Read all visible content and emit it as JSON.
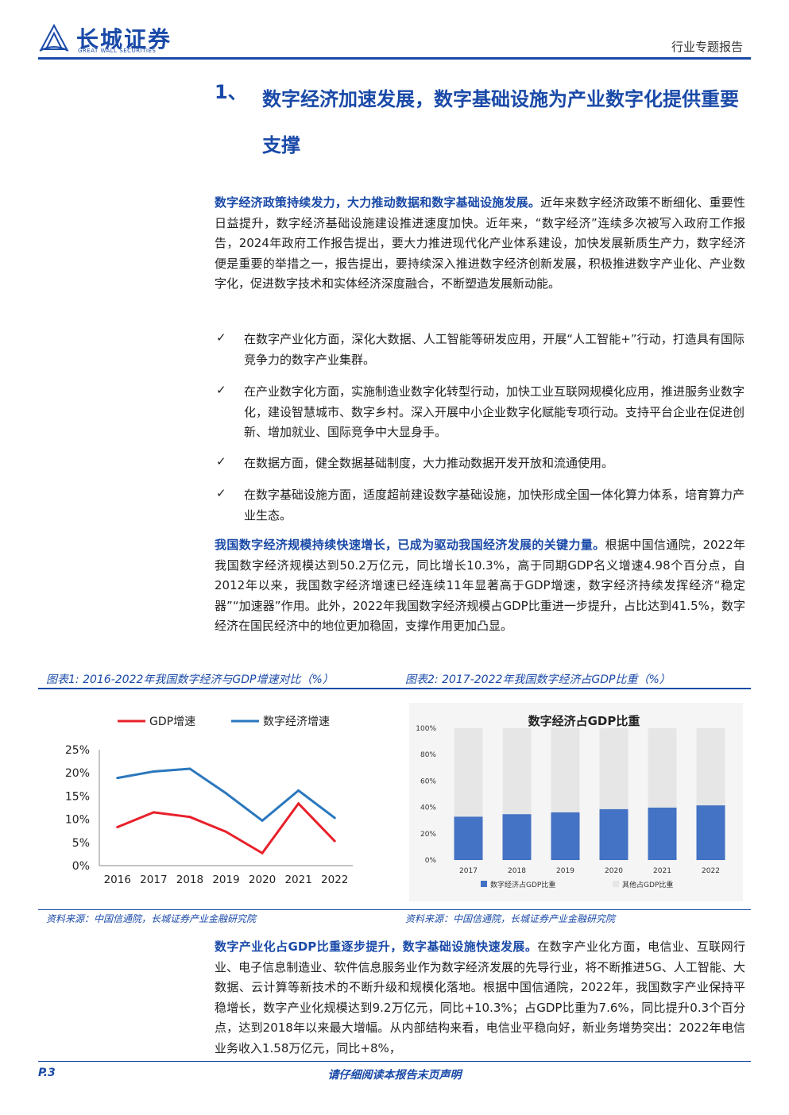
{
  "header": {
    "logo_cn": "长城证券",
    "logo_en": "GREAT WALL SECURITIES",
    "report_type": "行业专题报告"
  },
  "section": {
    "number": "1、",
    "title": "数字经济加速发展，数字基础设施为产业数字化提供重要支撑"
  },
  "para1": {
    "lead": "数字经济政策持续发力，大力推动数据和数字基础设施发展。",
    "text": "近年来数字经济政策不断细化、重要性日益提升，数字经济基础设施建设推进速度加快。近年来，“数字经济”连续多次被写入政府工作报告，2024年政府工作报告提出，要大力推进现代化产业体系建设，加快发展新质生产力，数字经济便是重要的举措之一，报告提出，要持续深入推进数字经济创新发展，积极推进数字产业化、产业数字化，促进数字技术和实体经济深度融合，不断塑造发展新动能。"
  },
  "bullets": [
    {
      "mark": "✓",
      "text": "在数字产业化方面，深化大数据、人工智能等研发应用，开展“人工智能+”行动，打造具有国际竞争力的数字产业集群。"
    },
    {
      "mark": "✓",
      "text": "在产业数字化方面，实施制造业数字化转型行动，加快工业互联网规模化应用，推进服务业数字化，建设智慧城市、数字乡村。深入开展中小企业数字化赋能专项行动。支持平台企业在促进创新、增加就业、国际竞争中大显身手。"
    },
    {
      "mark": "✓",
      "text": "在数据方面，健全数据基础制度，大力推动数据开发开放和流通使用。"
    },
    {
      "mark": "✓",
      "text": "在数字基础设施方面，适度超前建设数字基础设施，加快形成全国一体化算力体系，培育算力产业生态。"
    }
  ],
  "para2": {
    "lead": "我国数字经济规模持续快速增长，已成为驱动我国经济发展的关键力量。",
    "text": "根据中国信通院，2022年我国数字经济规模达到50.2万亿元，同比增长10.3%，高于同期GDP名义增速4.98个百分点，自2012年以来，我国数字经济增速已经连续11年显著高于GDP增速，数字经济持续发挥经济“稳定器”“加速器”作用。此外，2022年我国数字经济规模占GDP比重进一步提升，占比达到41.5%，数字经济在国民经济中的地位更加稳固，支撑作用更加凸显。"
  },
  "figure1": {
    "caption": "图表1:  2016-2022年我国数字经济与GDP增速对比（%）",
    "source": "资料来源：中国信通院，长城证券产业金融研究院"
  },
  "figure2": {
    "caption": "图表2:  2017-2022年我国数字经济占GDP比重（%）",
    "source": "资料来源：中国信通院，长城证券产业金融研究院"
  },
  "chart_data": [
    {
      "type": "line",
      "title": "",
      "x": [
        "2016",
        "2017",
        "2018",
        "2019",
        "2020",
        "2021",
        "2022"
      ],
      "series": [
        {
          "name": "GDP增速",
          "color": "#e8202a",
          "values": [
            8.3,
            11.5,
            10.5,
            7.3,
            2.7,
            13.4,
            5.3
          ]
        },
        {
          "name": "数字经济增速",
          "color": "#2a77bd",
          "values": [
            18.9,
            20.3,
            20.9,
            15.6,
            9.7,
            16.2,
            10.3
          ]
        }
      ],
      "y_ticks": [
        "0%",
        "5%",
        "10%",
        "15%",
        "20%",
        "25%"
      ],
      "ylim": [
        0,
        25
      ],
      "legend": "top-left",
      "grid": false
    },
    {
      "type": "bar",
      "title": "数字经济占GDP比重",
      "categories": [
        "2017",
        "2018",
        "2019",
        "2020",
        "2021",
        "2022"
      ],
      "series": [
        {
          "name": "数字经济占GDP比重",
          "color": "#4472c4",
          "values": [
            32.9,
            34.8,
            36.2,
            38.6,
            39.8,
            41.5
          ]
        },
        {
          "name": "其他占GDP比重",
          "color": "#e6e6e6",
          "values": [
            67.1,
            65.2,
            63.8,
            61.4,
            60.2,
            58.5
          ]
        }
      ],
      "y_ticks": [
        "0%",
        "20%",
        "40%",
        "60%",
        "80%",
        "100%"
      ],
      "ylim": [
        0,
        100
      ],
      "legend": "bottom",
      "stacked": true
    }
  ],
  "para3": {
    "lead": "数字产业化占GDP比重逐步提升，数字基础设施快速发展。",
    "text": "在数字产业化方面，电信业、互联网行业、电子信息制造业、软件信息服务业作为数字经济发展的先导行业，将不断推进5G、人工智能、大数据、云计算等新技术的不断升级和规模化落地。根据中国信通院，2022年，我国数字产业保持平稳增长，数字产业化规模达到9.2万亿元，同比+10.3%；占GDP比重为7.6%，同比提升0.3个百分点，达到2018年以来最大增幅。从内部结构来看，电信业平稳向好，新业务增势突出：2022年电信业务收入1.58万亿元，同比+8%，"
  },
  "footer": {
    "page": "P.3",
    "notice": "请仔细阅读本报告末页声明"
  }
}
